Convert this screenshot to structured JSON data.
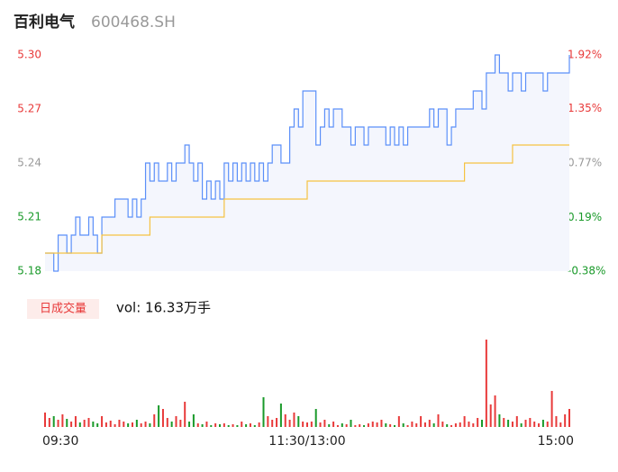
{
  "chart_data": {
    "type": "intraday",
    "title": "百利电气",
    "subtitle": "600468.SH",
    "x": [
      0,
      2,
      4,
      6,
      8,
      10,
      12,
      14,
      16,
      18,
      20,
      22,
      24,
      26,
      28,
      30,
      32,
      34,
      36,
      38,
      40,
      42,
      44,
      46,
      48,
      50,
      52,
      54,
      56,
      58,
      60,
      62,
      64,
      66,
      68,
      70,
      72,
      74,
      76,
      78,
      80,
      82,
      84,
      86,
      88,
      90,
      92,
      94,
      96,
      98,
      100,
      102,
      104,
      106,
      108,
      110,
      112,
      114,
      116,
      118,
      120,
      122,
      124,
      126,
      128,
      130,
      132,
      134,
      136,
      138,
      140,
      142,
      144,
      146,
      148,
      150,
      152,
      154,
      156,
      158,
      160,
      162,
      164,
      166,
      168,
      170,
      172,
      174,
      176,
      178,
      180,
      182,
      184,
      186,
      188,
      190,
      192,
      194,
      196,
      198,
      200,
      202,
      204,
      206,
      208,
      210,
      212,
      214,
      216,
      218,
      220,
      222,
      224,
      226,
      228,
      230,
      232,
      234,
      236,
      238,
      240
    ],
    "xlim": [
      0,
      240
    ],
    "xticks": [
      {
        "value": 0,
        "label": "09:30"
      },
      {
        "value": 120,
        "label": "11:30/13:00"
      },
      {
        "value": 240,
        "label": "15:00"
      }
    ],
    "ylim": [
      5.18,
      5.3
    ],
    "yticks": [
      5.18,
      5.21,
      5.24,
      5.27,
      {
        "value": 5.3,
        "label": "5.30"
      }
    ],
    "ytick_colors": [
      "#1a9a2a",
      "#1a9a2a",
      "#999999",
      "#e83a3a",
      "#e83a3a"
    ],
    "y2lim": [
      -0.38,
      1.92
    ],
    "y2ticks": [
      {
        "value": -0.38,
        "label": "-0.38%"
      },
      {
        "value": 0.19,
        "label": "0.19%"
      },
      {
        "value": 0.77,
        "label": "0.77%"
      },
      {
        "value": 1.35,
        "label": "1.35%"
      },
      {
        "value": 1.92,
        "label": "1.92%"
      }
    ],
    "y2tick_colors": [
      "#1a9a2a",
      "#1a9a2a",
      "#999999",
      "#e83a3a",
      "#e83a3a"
    ],
    "series": [
      {
        "name": "price",
        "color": "#5b8ff9",
        "values": [
          5.19,
          5.19,
          5.18,
          5.2,
          5.2,
          5.19,
          5.2,
          5.21,
          5.2,
          5.2,
          5.21,
          5.2,
          5.19,
          5.21,
          5.21,
          5.21,
          5.22,
          5.22,
          5.22,
          5.21,
          5.22,
          5.21,
          5.22,
          5.24,
          5.23,
          5.24,
          5.23,
          5.23,
          5.24,
          5.23,
          5.24,
          5.24,
          5.25,
          5.24,
          5.23,
          5.24,
          5.22,
          5.23,
          5.22,
          5.23,
          5.22,
          5.24,
          5.23,
          5.24,
          5.23,
          5.24,
          5.23,
          5.24,
          5.23,
          5.24,
          5.23,
          5.24,
          5.25,
          5.25,
          5.24,
          5.24,
          5.26,
          5.27,
          5.26,
          5.28,
          5.28,
          5.28,
          5.25,
          5.26,
          5.27,
          5.26,
          5.27,
          5.27,
          5.26,
          5.26,
          5.25,
          5.26,
          5.26,
          5.25,
          5.26,
          5.26,
          5.26,
          5.26,
          5.25,
          5.26,
          5.25,
          5.26,
          5.25,
          5.26,
          5.26,
          5.26,
          5.26,
          5.26,
          5.27,
          5.26,
          5.27,
          5.27,
          5.25,
          5.26,
          5.27,
          5.27,
          5.27,
          5.27,
          5.28,
          5.28,
          5.27,
          5.29,
          5.29,
          5.3,
          5.29,
          5.29,
          5.28,
          5.29,
          5.29,
          5.28,
          5.29,
          5.29,
          5.29,
          5.29,
          5.28,
          5.29,
          5.29,
          5.29,
          5.29,
          5.29,
          5.3
        ]
      },
      {
        "name": "average",
        "color": "#f5c242",
        "values": [
          5.19,
          5.19,
          5.19,
          5.19,
          5.19,
          5.19,
          5.19,
          5.19,
          5.19,
          5.19,
          5.19,
          5.19,
          5.19,
          5.2,
          5.2,
          5.2,
          5.2,
          5.2,
          5.2,
          5.2,
          5.2,
          5.2,
          5.2,
          5.2,
          5.21,
          5.21,
          5.21,
          5.21,
          5.21,
          5.21,
          5.21,
          5.21,
          5.21,
          5.21,
          5.21,
          5.21,
          5.21,
          5.21,
          5.21,
          5.21,
          5.21,
          5.22,
          5.22,
          5.22,
          5.22,
          5.22,
          5.22,
          5.22,
          5.22,
          5.22,
          5.22,
          5.22,
          5.22,
          5.22,
          5.22,
          5.22,
          5.22,
          5.22,
          5.22,
          5.22,
          5.23,
          5.23,
          5.23,
          5.23,
          5.23,
          5.23,
          5.23,
          5.23,
          5.23,
          5.23,
          5.23,
          5.23,
          5.23,
          5.23,
          5.23,
          5.23,
          5.23,
          5.23,
          5.23,
          5.23,
          5.23,
          5.23,
          5.23,
          5.23,
          5.23,
          5.23,
          5.23,
          5.23,
          5.23,
          5.23,
          5.23,
          5.23,
          5.23,
          5.23,
          5.23,
          5.23,
          5.24,
          5.24,
          5.24,
          5.24,
          5.24,
          5.24,
          5.24,
          5.24,
          5.24,
          5.24,
          5.24,
          5.25,
          5.25,
          5.25,
          5.25,
          5.25,
          5.25,
          5.25,
          5.25,
          5.25,
          5.25,
          5.25,
          5.25,
          5.25,
          5.25
        ]
      }
    ],
    "volume": {
      "label": "日成交量",
      "total_label": "vol: 16.33万手",
      "ylim": [
        0,
        100
      ],
      "up_color": "#e83a3a",
      "down_color": "#1a9a2a",
      "values": [
        16,
        10,
        12,
        8,
        14,
        9,
        6,
        12,
        5,
        8,
        10,
        6,
        4,
        12,
        5,
        7,
        3,
        8,
        6,
        4,
        5,
        8,
        4,
        6,
        4,
        14,
        24,
        20,
        10,
        6,
        12,
        8,
        28,
        6,
        14,
        4,
        3,
        6,
        2,
        4,
        3,
        4,
        2,
        3,
        2,
        6,
        3,
        4,
        2,
        5,
        33,
        12,
        8,
        10,
        26,
        14,
        8,
        16,
        12,
        6,
        5,
        6,
        20,
        5,
        8,
        3,
        6,
        2,
        4,
        3,
        8,
        2,
        3,
        2,
        4,
        6,
        5,
        8,
        4,
        3,
        2,
        12,
        4,
        2,
        6,
        4,
        12,
        5,
        8,
        4,
        14,
        6,
        3,
        2,
        4,
        5,
        12,
        6,
        4,
        10,
        8,
        97,
        25,
        35,
        14,
        10,
        8,
        6,
        12,
        4,
        8,
        10,
        6,
        4,
        8,
        6,
        40,
        12,
        5,
        14,
        20
      ]
    }
  }
}
